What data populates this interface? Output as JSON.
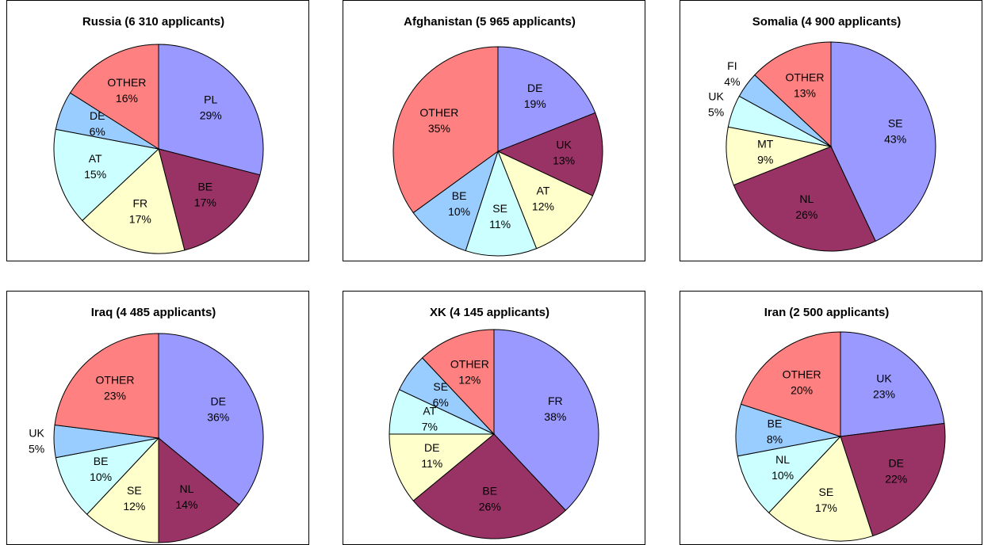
{
  "chart_data": [
    {
      "type": "pie",
      "title": "Russia (6 310 applicants)",
      "categories": [
        "PL",
        "BE",
        "FR",
        "AT",
        "DE",
        "OTHER"
      ],
      "values": [
        29,
        17,
        17,
        15,
        6,
        16
      ],
      "value_labels": [
        "29%",
        "17%",
        "17%",
        "15%",
        "6%",
        "16%"
      ],
      "colors": [
        "#9999ff",
        "#993366",
        "#ffffcc",
        "#ccffff",
        "#99ccff",
        "#ff8080"
      ]
    },
    {
      "type": "pie",
      "title": "Afghanistan (5 965 applicants)",
      "categories": [
        "DE",
        "UK",
        "AT",
        "SE",
        "BE",
        "OTHER"
      ],
      "values": [
        19,
        13,
        12,
        11,
        10,
        35
      ],
      "value_labels": [
        "19%",
        "13%",
        "12%",
        "11%",
        "10%",
        "35%"
      ],
      "colors": [
        "#9999ff",
        "#993366",
        "#ffffcc",
        "#ccffff",
        "#99ccff",
        "#ff8080"
      ]
    },
    {
      "type": "pie",
      "title": "Somalia (4 900 applicants)",
      "categories": [
        "SE",
        "NL",
        "MT",
        "UK",
        "FI",
        "OTHER"
      ],
      "values": [
        43,
        26,
        9,
        5,
        4,
        13
      ],
      "value_labels": [
        "43%",
        "26%",
        "9%",
        "5%",
        "4%",
        "13%"
      ],
      "colors": [
        "#9999ff",
        "#993366",
        "#ffffcc",
        "#ccffff",
        "#99ccff",
        "#ff8080"
      ]
    },
    {
      "type": "pie",
      "title": "Iraq (4 485 applicants)",
      "categories": [
        "DE",
        "NL",
        "SE",
        "BE",
        "UK",
        "OTHER"
      ],
      "values": [
        36,
        14,
        12,
        10,
        5,
        23
      ],
      "value_labels": [
        "36%",
        "14%",
        "12%",
        "10%",
        "5%",
        "23%"
      ],
      "colors": [
        "#9999ff",
        "#993366",
        "#ffffcc",
        "#ccffff",
        "#99ccff",
        "#ff8080"
      ]
    },
    {
      "type": "pie",
      "title": "XK (4 145 applicants)",
      "categories": [
        "FR",
        "BE",
        "DE",
        "AT",
        "SE",
        "OTHER"
      ],
      "values": [
        38,
        26,
        11,
        7,
        6,
        12
      ],
      "value_labels": [
        "38%",
        "26%",
        "11%",
        "7%",
        "6%",
        "12%"
      ],
      "colors": [
        "#9999ff",
        "#993366",
        "#ffffcc",
        "#ccffff",
        "#99ccff",
        "#ff8080"
      ]
    },
    {
      "type": "pie",
      "title": "Iran (2 500 applicants)",
      "categories": [
        "UK",
        "DE",
        "SE",
        "NL",
        "BE",
        "OTHER"
      ],
      "values": [
        23,
        22,
        17,
        10,
        8,
        20
      ],
      "value_labels": [
        "23%",
        "22%",
        "17%",
        "10%",
        "8%",
        "20%"
      ],
      "colors": [
        "#9999ff",
        "#993366",
        "#ffffcc",
        "#ccffff",
        "#99ccff",
        "#ff8080"
      ]
    }
  ]
}
